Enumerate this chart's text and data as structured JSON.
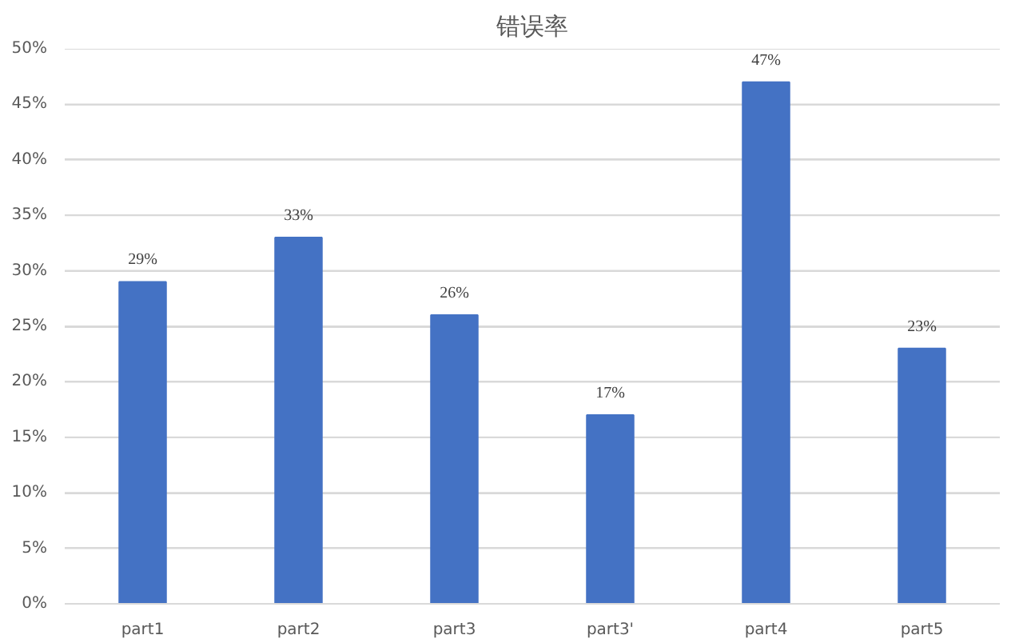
{
  "chart_data": {
    "type": "bar",
    "title": "错误率",
    "categories": [
      "part1",
      "part2",
      "part3",
      "part3'",
      "part4",
      "part5"
    ],
    "values": [
      29,
      33,
      26,
      17,
      47,
      23
    ],
    "color": "#4472c4",
    "ylim": [
      0,
      50
    ],
    "yticks": [
      {
        "value": 0,
        "label": "0%"
      },
      {
        "value": 5,
        "label": "5%"
      },
      {
        "value": 10,
        "label": "10%"
      },
      {
        "value": 15,
        "label": "15%"
      },
      {
        "value": 20,
        "label": "20%"
      },
      {
        "value": 25,
        "label": "25%"
      },
      {
        "value": 30,
        "label": "30%"
      },
      {
        "value": 35,
        "label": "35%"
      },
      {
        "value": 40,
        "label": "40%"
      },
      {
        "value": 45,
        "label": "45%"
      },
      {
        "value": 50,
        "label": "50%"
      }
    ],
    "value_labels": [
      "29%",
      "33%",
      "26%",
      "17%",
      "47%",
      "23%"
    ],
    "grid": "y"
  }
}
